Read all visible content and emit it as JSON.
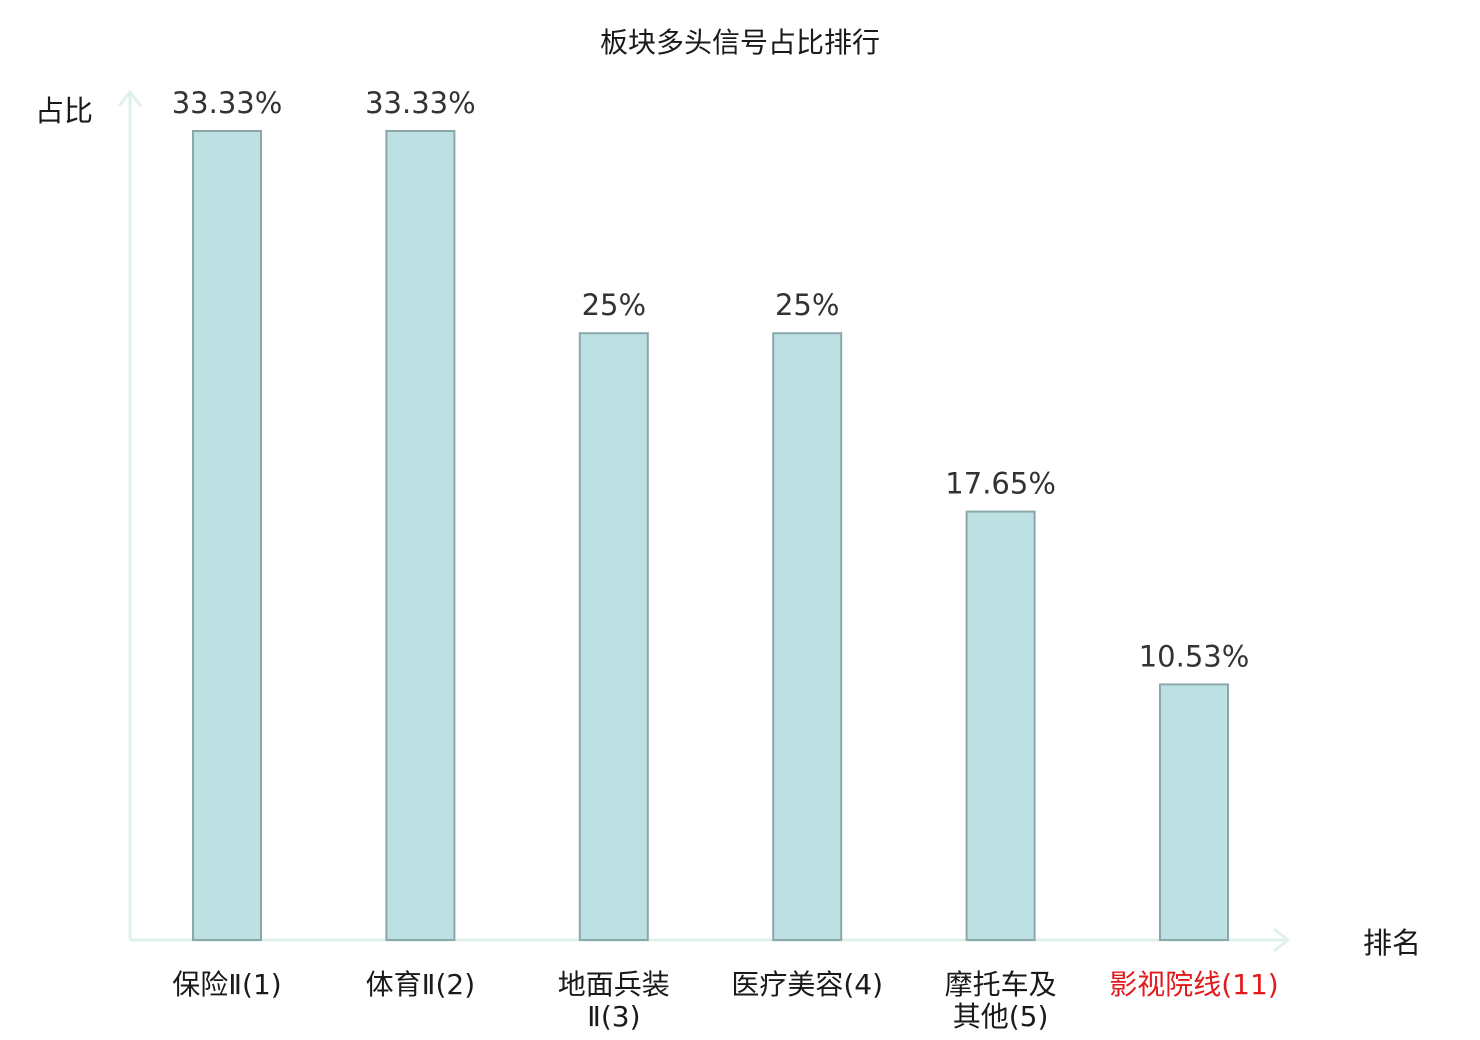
{
  "chart_data": {
    "type": "bar",
    "title": "板块多头信号占比排行",
    "xlabel": "排名",
    "ylabel": "占比",
    "categories": [
      {
        "lines": [
          "保险Ⅱ(1)"
        ],
        "highlight": false
      },
      {
        "lines": [
          "体育Ⅱ(2)"
        ],
        "highlight": false
      },
      {
        "lines": [
          "地面兵装",
          "Ⅱ(3)"
        ],
        "highlight": false
      },
      {
        "lines": [
          "医疗美容(4)"
        ],
        "highlight": false
      },
      {
        "lines": [
          "摩托车及",
          "其他(5)"
        ],
        "highlight": false
      },
      {
        "lines": [
          "影视院线(11)"
        ],
        "highlight": true
      }
    ],
    "values": [
      33.33,
      33.33,
      25,
      25,
      17.65,
      10.53
    ],
    "value_labels": [
      "33.33%",
      "33.33%",
      "25%",
      "25%",
      "17.65%",
      "10.53%"
    ],
    "ylim": [
      0,
      33.33
    ],
    "grid": false,
    "colors": {
      "bar_fill": "#bde0e3",
      "bar_stroke": "#8aa8aa",
      "axis": "#dff0ee",
      "category_text": "#1a1a1a",
      "highlight_text": "#e31a1c"
    }
  }
}
